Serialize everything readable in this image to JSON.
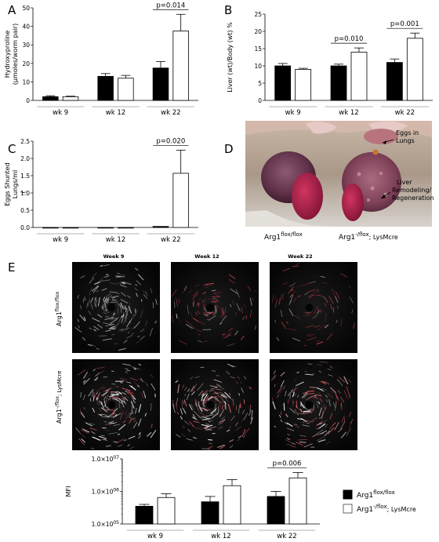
{
  "panels": {
    "A": {
      "letter": "A"
    },
    "B": {
      "letter": "B"
    },
    "C": {
      "letter": "C"
    },
    "D": {
      "letter": "D"
    },
    "E": {
      "letter": "E"
    }
  },
  "chart_data": [
    {
      "id": "A",
      "type": "bar",
      "categories": [
        "wk 9",
        "wk 12",
        "wk 22"
      ],
      "ylabel_line1": "Hydroxyproline",
      "ylabel_line2": "(µmoles/worm pair)",
      "ylim": [
        0,
        50
      ],
      "yticks": [
        "0",
        "10",
        "20",
        "30",
        "40",
        "50"
      ],
      "series": [
        {
          "name": "Arg1 flox/flox",
          "color": "#000000",
          "values": [
            2,
            13,
            17.5
          ],
          "errors": [
            0.5,
            1.5,
            3.5
          ]
        },
        {
          "name": "Arg1 -/flox; LysMcre",
          "color": "#ffffff",
          "values": [
            2,
            12,
            37.5
          ],
          "errors": [
            0.3,
            1.5,
            9
          ]
        }
      ],
      "annotations": [
        {
          "text": "p=0.014",
          "category": 2
        }
      ]
    },
    {
      "id": "B",
      "type": "bar",
      "categories": [
        "wk 9",
        "wk 12",
        "wk 22"
      ],
      "ylabel": "Liver (wt)/Body (wt) %",
      "ylim": [
        0,
        25
      ],
      "yticks": [
        "0",
        "5",
        "10",
        "15",
        "20",
        "25"
      ],
      "series": [
        {
          "name": "Arg1 flox/flox",
          "color": "#000000",
          "values": [
            10,
            10,
            11
          ],
          "errors": [
            0.7,
            0.5,
            1
          ]
        },
        {
          "name": "Arg1 -/flox; LysMcre",
          "color": "#ffffff",
          "values": [
            9,
            14,
            18
          ],
          "errors": [
            0.3,
            1.2,
            1.5
          ]
        }
      ],
      "annotations": [
        {
          "text": "p=0.010",
          "category": 1
        },
        {
          "text": "p=0.001",
          "category": 2
        }
      ]
    },
    {
      "id": "C",
      "type": "bar",
      "categories": [
        "wk 9",
        "wk 12",
        "wk 22"
      ],
      "ylabel_line1": "Eggs Shunted",
      "ylabel_line2": "Lungs/ml",
      "yunit": "(",
      "ylim": [
        0,
        2.5
      ],
      "yticks": [
        "0.0",
        "0.5",
        "1.0",
        "1.5",
        "2.0",
        "2.5"
      ],
      "series": [
        {
          "name": "Arg1 flox/flox",
          "color": "#000000",
          "values": [
            0,
            0,
            0.03
          ],
          "errors": [
            0,
            0,
            0
          ]
        },
        {
          "name": "Arg1 -/flox; LysMcre",
          "color": "#ffffff",
          "values": [
            0,
            0,
            1.57
          ],
          "errors": [
            0,
            0,
            0.67
          ]
        }
      ],
      "annotations": [
        {
          "text": "p=0.020",
          "category": 2
        }
      ]
    },
    {
      "id": "E",
      "type": "bar",
      "scale": "log",
      "categories": [
        "wk 9",
        "wk 12",
        "wk 22"
      ],
      "ylabel": "MFI",
      "ylim": [
        100000,
        10000000
      ],
      "yticks": [
        {
          "base": "1.0×10",
          "exp": "05"
        },
        {
          "base": "1.0×10",
          "exp": "06"
        },
        {
          "base": "1.0×10",
          "exp": "07"
        }
      ],
      "series": [
        {
          "name": "Arg1 flox/flox",
          "color": "#000000",
          "values": [
            350000,
            480000,
            700000
          ],
          "errors_upper": [
            400000,
            700000,
            1000000
          ]
        },
        {
          "name": "Arg1 -/flox; LysMcre",
          "color": "#ffffff",
          "values": [
            650000,
            1500000,
            2600000
          ],
          "errors_upper": [
            850000,
            2300000,
            3800000
          ]
        }
      ],
      "annotations": [
        {
          "text": "p=0.006",
          "category": 2
        }
      ]
    }
  ],
  "photo_D": {
    "annotation_eggs_line1": "Eggs in",
    "annotation_eggs_line2": "Lungs",
    "annotation_liver_line1": "Liver",
    "annotation_liver_line2": "Remodeling/",
    "annotation_liver_line3": "Regeneration",
    "genotype_left_base": "Arg1",
    "genotype_left_sup": "flox/flox",
    "genotype_right_base": "Arg1",
    "genotype_right_sup": "-/flox",
    "genotype_right_tail": "; LysMcre"
  },
  "micrographs_E": {
    "columns": [
      "Week 9",
      "Week 12",
      "Week 22"
    ],
    "row1_base": "Arg1",
    "row1_sup": "flox/flox",
    "row2_base": "Arg1",
    "row2_sup": "-/flox",
    "row2_tail": "; LysMcre"
  },
  "legend": {
    "item1_base": "Arg1",
    "item1_sup": "flox/flox",
    "item2_base": "Arg1",
    "item2_sup": "-/flox",
    "item2_tail": "; LysMcre",
    "item1_color": "#000000",
    "item2_color": "#ffffff"
  }
}
